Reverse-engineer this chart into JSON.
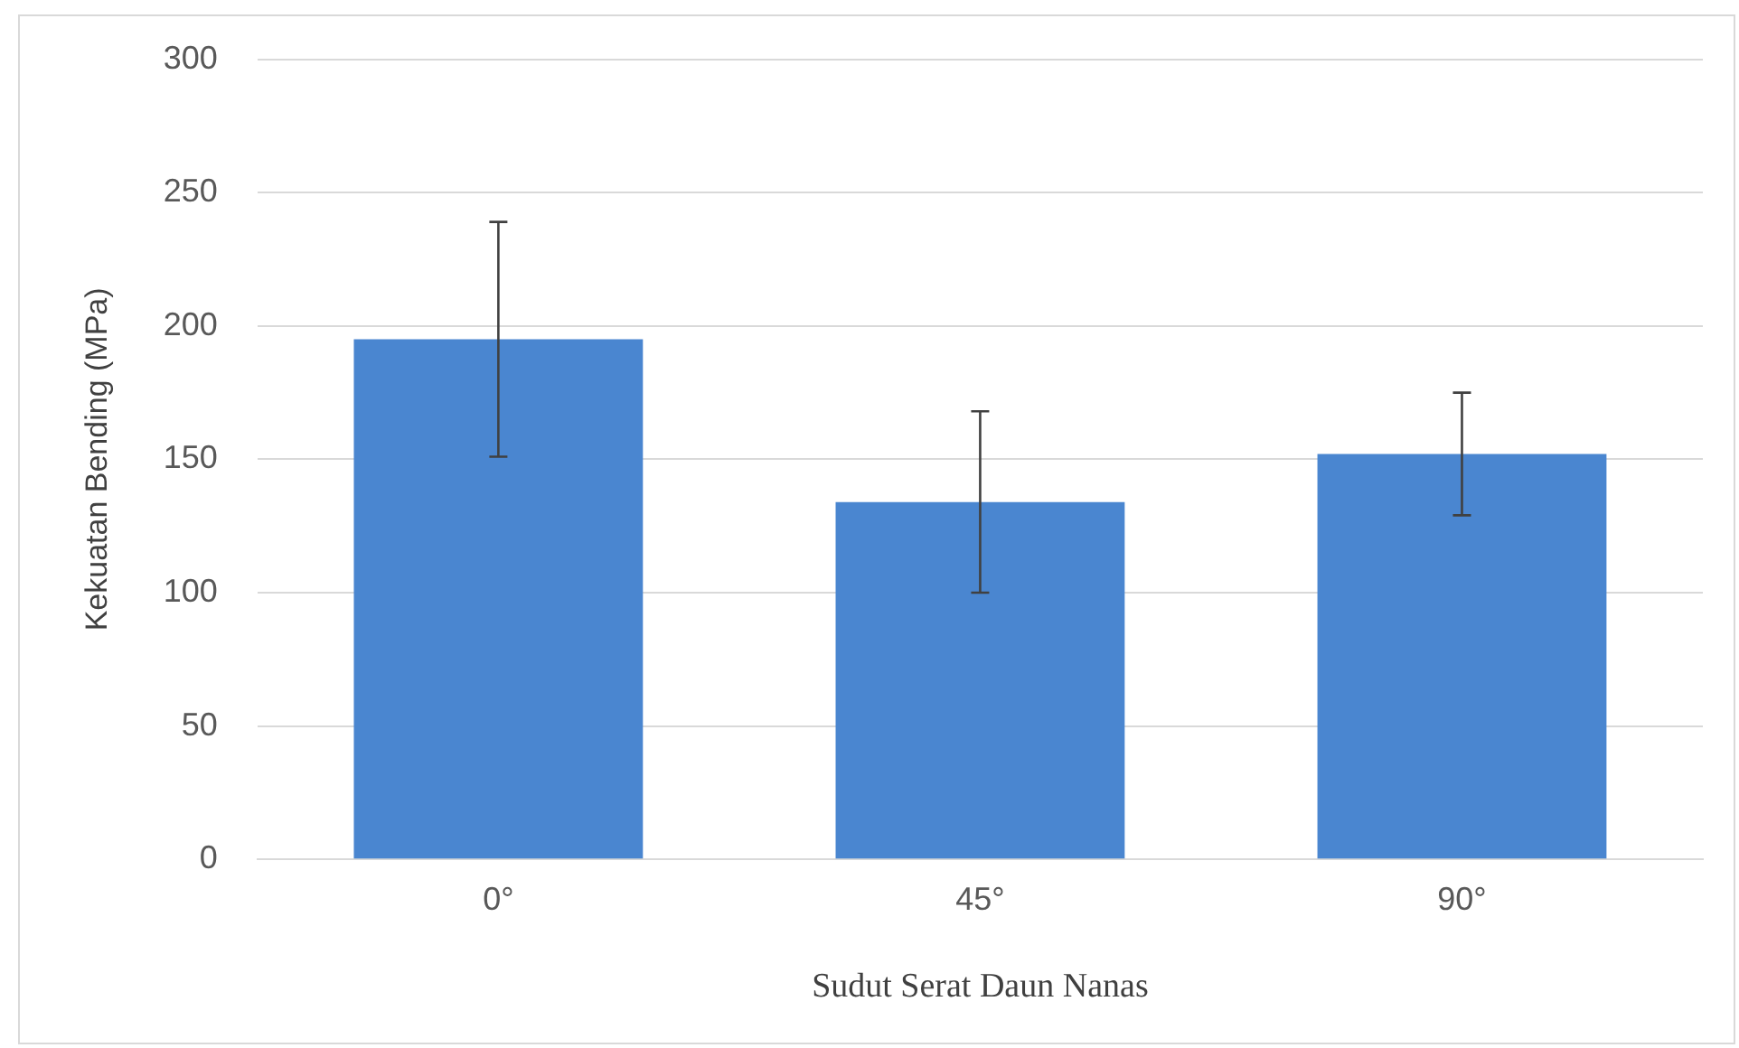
{
  "chart_data": {
    "type": "bar",
    "xlabel": "Sudut Serat Daun Nanas",
    "ylabel": "Kekuatan Bending (MPa)",
    "categories": [
      "0°",
      "45°",
      "90°"
    ],
    "values": [
      195,
      134,
      152
    ],
    "errors": [
      44,
      34,
      23
    ],
    "color": "#4a86d0",
    "ylim": [
      0,
      300
    ],
    "yticks": [
      0,
      50,
      100,
      150,
      200,
      250,
      300
    ],
    "grid": "y",
    "legend": false
  }
}
